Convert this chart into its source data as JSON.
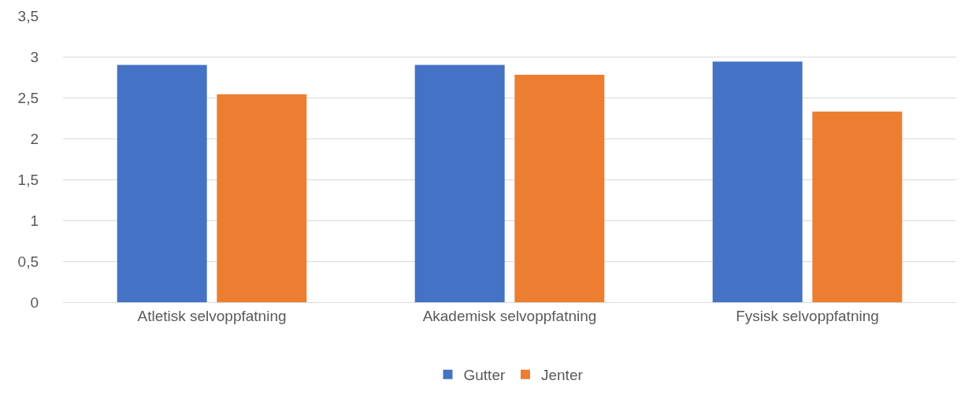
{
  "chart_data": {
    "type": "bar",
    "categories": [
      "Atletisk selvoppfatning",
      "Akademisk selvoppfatning",
      "Fysisk selvoppfatning"
    ],
    "series": [
      {
        "name": "Gutter",
        "color": "#4472c4",
        "values": [
          2.9,
          2.9,
          2.94
        ]
      },
      {
        "name": "Jenter",
        "color": "#ed7d31",
        "values": [
          2.54,
          2.78,
          2.33
        ]
      }
    ],
    "ylim": [
      0,
      3.5
    ],
    "yticks": [
      0,
      {
        "value": 0.5,
        "label": "0,5"
      },
      1,
      {
        "value": 1.5,
        "label": "1,5"
      },
      2,
      {
        "value": 2.5,
        "label": "2,5"
      },
      3,
      {
        "value": 3.5,
        "label": "3,5"
      }
    ],
    "grid": "y",
    "legend": "bottom"
  }
}
